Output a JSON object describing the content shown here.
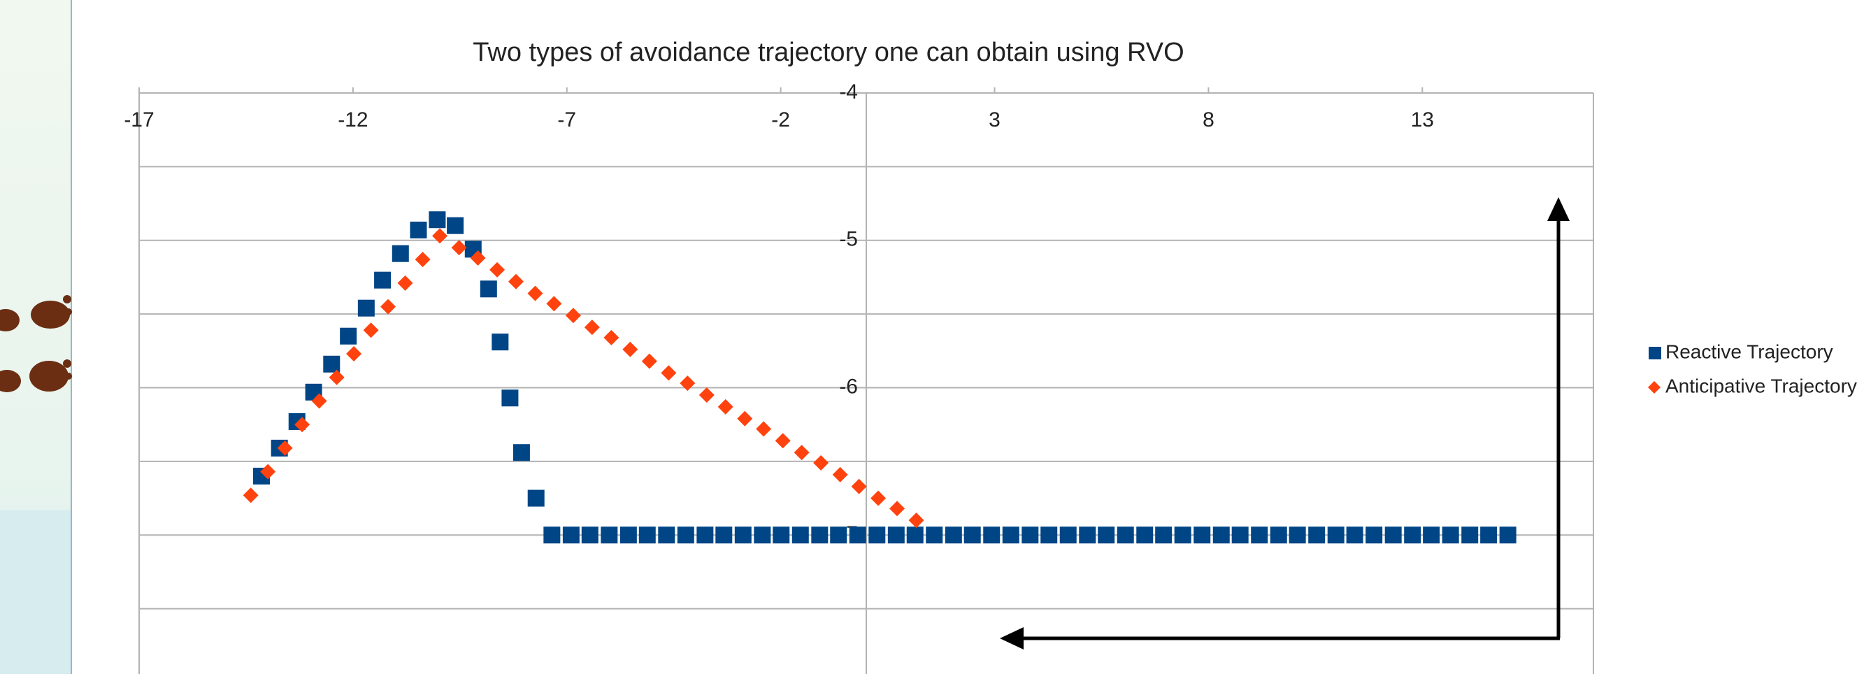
{
  "chart_data": {
    "type": "scatter",
    "title": "Two types of avoidance trajectory one can obtain using RVO",
    "xlim": [
      -17,
      17
    ],
    "ylim": [
      -4,
      -8
    ],
    "xticks": [
      -17,
      -12,
      -7,
      -2,
      3,
      8,
      13
    ],
    "yticks": [
      -4,
      -5,
      -6,
      -7
    ],
    "y_minor_grid": [
      -4.5,
      -5.5,
      -6.5,
      -7.5
    ],
    "grid": true,
    "legend": "right",
    "series": [
      {
        "name": "Reactive Trajectory",
        "color": "#004586",
        "marker": "square",
        "x": [
          -14.14,
          -13.72,
          -13.31,
          -12.92,
          -12.5,
          -12.11,
          -11.69,
          -11.31,
          -10.89,
          -10.47,
          -10.03,
          -9.61,
          -9.19,
          -8.83,
          -8.56,
          -8.33,
          -8.06,
          -7.72,
          -7.35,
          -6.9,
          -6.46,
          -6.01,
          -5.56,
          -5.12,
          -4.67,
          -4.22,
          -3.77,
          -3.33,
          -2.88,
          -2.43,
          -1.99,
          -1.54,
          -1.09,
          -0.65,
          -0.2,
          0.25,
          0.7,
          1.14,
          1.59,
          2.04,
          2.48,
          2.93,
          3.38,
          3.83,
          4.27,
          4.72,
          5.17,
          5.61,
          6.06,
          6.51,
          6.95,
          7.4,
          7.85,
          8.3,
          8.74,
          9.19,
          9.64,
          10.08,
          10.53,
          10.98,
          11.42,
          11.87,
          12.32,
          12.77,
          13.21,
          13.66,
          14.11,
          14.55,
          15.0
        ],
        "y": [
          -6.6,
          -6.41,
          -6.23,
          -6.03,
          -5.84,
          -5.65,
          -5.46,
          -5.27,
          -5.09,
          -4.93,
          -4.86,
          -4.9,
          -5.06,
          -5.33,
          -5.69,
          -6.07,
          -6.44,
          -6.75,
          -7,
          -7,
          -7,
          -7,
          -7,
          -7,
          -7,
          -7,
          -7,
          -7,
          -7,
          -7,
          -7,
          -7,
          -7,
          -7,
          -7,
          -7,
          -7,
          -7,
          -7,
          -7,
          -7,
          -7,
          -7,
          -7,
          -7,
          -7,
          -7,
          -7,
          -7,
          -7,
          -7,
          -7,
          -7,
          -7,
          -7,
          -7,
          -7,
          -7,
          -7,
          -7,
          -7,
          -7,
          -7,
          -7,
          -7,
          -7,
          -7,
          -7,
          -7
        ]
      },
      {
        "name": "Anticipative Trajectory",
        "color": "#ff420e",
        "marker": "diamond",
        "x": [
          -14.39,
          -13.99,
          -13.59,
          -13.19,
          -12.79,
          -12.38,
          -11.98,
          -11.58,
          -11.18,
          -10.78,
          -10.37,
          -9.97,
          -9.52,
          -9.08,
          -8.63,
          -8.19,
          -7.74,
          -7.3,
          -6.85,
          -6.41,
          -5.96,
          -5.52,
          -5.07,
          -4.62,
          -4.18,
          -3.73,
          -3.29,
          -2.84,
          -2.4,
          -1.95,
          -1.51,
          -1.06,
          -0.61,
          -0.17,
          0.28,
          0.72,
          1.17
        ],
        "y": [
          -6.73,
          -6.57,
          -6.41,
          -6.25,
          -6.09,
          -5.93,
          -5.77,
          -5.61,
          -5.45,
          -5.29,
          -5.13,
          -4.97,
          -5.05,
          -5.12,
          -5.2,
          -5.28,
          -5.36,
          -5.43,
          -5.51,
          -5.59,
          -5.66,
          -5.74,
          -5.82,
          -5.9,
          -5.97,
          -6.05,
          -6.13,
          -6.21,
          -6.28,
          -6.36,
          -6.44,
          -6.51,
          -6.59,
          -6.67,
          -6.75,
          -6.82,
          -6.9
        ]
      }
    ]
  }
}
